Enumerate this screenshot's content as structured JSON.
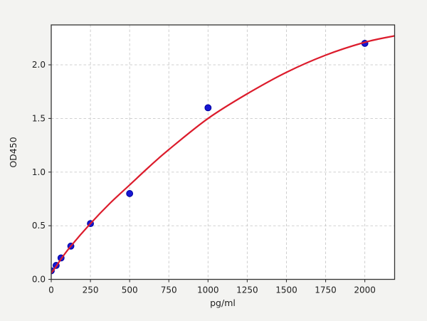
{
  "figure": {
    "background_color": "#f3f3f1",
    "plot_background_color": "#ffffff",
    "title": ""
  },
  "chart_data": {
    "type": "scatter",
    "title": "",
    "xlabel": "pg/ml",
    "ylabel": "OD450",
    "xlim": [
      0,
      2190
    ],
    "ylim": [
      0,
      2.372
    ],
    "grid": true,
    "grid_style": "dashed",
    "legend_position": "none",
    "x_ticks": {
      "values": [
        0,
        250,
        500,
        750,
        1000,
        1250,
        1500,
        1750,
        2000
      ],
      "labels": [
        "0",
        "250",
        "500",
        "750",
        "1000",
        "1250",
        "1500",
        "1750",
        "2000"
      ]
    },
    "y_ticks": {
      "values": [
        0.0,
        0.5,
        1.0,
        1.5,
        2.0
      ],
      "labels": [
        "0.0",
        "0.5",
        "1.0",
        "1.5",
        "2.0"
      ]
    },
    "series": [
      {
        "name": "standard-points",
        "kind": "scatter",
        "marker": "circle",
        "marker_color": "#1717d2",
        "marker_edge_color": "#0000a0",
        "x": [
          0,
          31.25,
          62.5,
          125,
          250,
          500,
          1000,
          2000
        ],
        "y": [
          0.08,
          0.13,
          0.2,
          0.31,
          0.52,
          0.8,
          1.6,
          2.2
        ]
      },
      {
        "name": "fit-curve",
        "kind": "line",
        "line_color": "#dc1c2c",
        "x": [
          0,
          31.25,
          62.5,
          125,
          250,
          375,
          500,
          625,
          750,
          1000,
          1250,
          1500,
          1750,
          2000,
          2190
        ],
        "y": [
          0.06,
          0.12,
          0.19,
          0.31,
          0.52,
          0.71,
          0.88,
          1.05,
          1.21,
          1.5,
          1.73,
          1.93,
          2.09,
          2.21,
          2.27
        ]
      }
    ]
  }
}
